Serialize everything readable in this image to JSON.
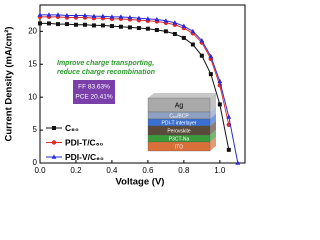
{
  "chart_data": {
    "type": "line",
    "x_label": "Voltage (V)",
    "y_label": "Current Density (mA/cm²)",
    "x": [
      0,
      0.05,
      0.1,
      0.15,
      0.2,
      0.25,
      0.3,
      0.35,
      0.4,
      0.45,
      0.5,
      0.55,
      0.6,
      0.65,
      0.7,
      0.75,
      0.8,
      0.85,
      0.9,
      0.95,
      1.0,
      1.05,
      1.1
    ],
    "series": [
      {
        "name": "C₆₀",
        "color": "#111111",
        "marker": "square",
        "values": [
          21.2,
          21.2,
          21.1,
          21.1,
          21.0,
          21.0,
          20.9,
          20.9,
          20.8,
          20.7,
          20.6,
          20.5,
          20.4,
          20.2,
          20.0,
          19.6,
          19.0,
          18.0,
          16.3,
          13.5,
          8.9,
          2.0,
          null
        ]
      },
      {
        "name": "PDI-T/C₆₀",
        "color": "#e02a2a",
        "marker": "circle",
        "values": [
          22.2,
          22.2,
          22.2,
          22.1,
          22.1,
          22.1,
          22.0,
          22.0,
          21.9,
          21.9,
          21.8,
          21.7,
          21.6,
          21.5,
          21.3,
          21.0,
          20.5,
          19.7,
          18.3,
          15.8,
          11.8,
          5.8,
          null
        ]
      },
      {
        "name": "PDI-V/C₆₀",
        "color": "#2a2ad6",
        "marker": "triangle",
        "values": [
          22.5,
          22.5,
          22.5,
          22.4,
          22.4,
          22.4,
          22.3,
          22.3,
          22.2,
          22.2,
          22.1,
          22.0,
          21.9,
          21.8,
          21.6,
          21.3,
          20.8,
          20.0,
          18.6,
          16.2,
          12.4,
          7.0,
          0.0
        ]
      }
    ],
    "xlim": [
      0,
      1.14
    ],
    "ylim": [
      0,
      24
    ],
    "xticks": [
      {
        "value": 0,
        "label": "0.0"
      },
      0.2,
      0.4,
      0.6,
      0.8,
      {
        "value": 1,
        "label": "1.0"
      }
    ],
    "yticks": [
      0,
      5,
      10,
      15,
      20
    ],
    "annotations": [
      "Improve charge transporting,",
      "reduce charge recombination"
    ],
    "metrics": [
      "FF 83.63%",
      "PCE 20.41%"
    ],
    "device_layers": [
      "Ag",
      "C₆₀/BCP",
      "PDI-T interlayer",
      "Perovskite",
      "P3CT-Na",
      "ITO"
    ]
  }
}
